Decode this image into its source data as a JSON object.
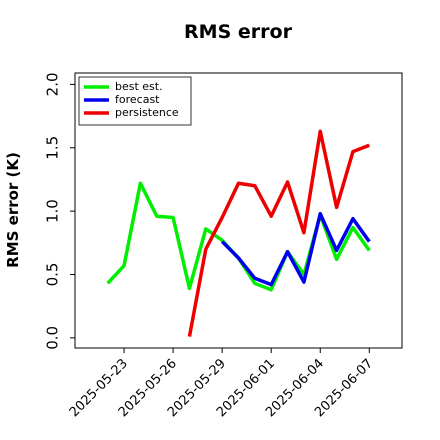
{
  "chart_data": {
    "type": "line",
    "title": "RMS error",
    "ylabel": "RMS error (K)",
    "x": [
      "2025-05-22",
      "2025-05-23",
      "2025-05-24",
      "2025-05-25",
      "2025-05-26",
      "2025-05-27",
      "2025-05-28",
      "2025-05-29",
      "2025-05-30",
      "2025-05-31",
      "2025-06-01",
      "2025-06-02",
      "2025-06-03",
      "2025-06-04",
      "2025-06-05",
      "2025-06-06",
      "2025-06-07"
    ],
    "series": [
      {
        "name": "best est.",
        "color": "#00ee00",
        "values": [
          0.43,
          0.57,
          1.22,
          0.96,
          0.95,
          0.39,
          0.86,
          0.77,
          0.63,
          0.43,
          0.38,
          0.68,
          0.5,
          0.97,
          0.62,
          0.87,
          0.69
        ]
      },
      {
        "name": "forecast",
        "color": "#0000ee",
        "values": [
          null,
          null,
          null,
          null,
          null,
          null,
          null,
          0.76,
          0.63,
          0.47,
          0.42,
          0.68,
          0.44,
          0.98,
          0.69,
          0.94,
          0.76
        ]
      },
      {
        "name": "persistence",
        "color": "#ee0000",
        "values": [
          null,
          null,
          null,
          null,
          null,
          0.01,
          0.7,
          0.95,
          1.22,
          1.2,
          0.96,
          1.23,
          0.83,
          1.63,
          1.03,
          1.47,
          1.52
        ]
      }
    ],
    "xlim": [
      "2025-05-20",
      "2025-06-09"
    ],
    "xticks": [
      "2025-05-23",
      "2025-05-26",
      "2025-05-29",
      "2025-06-01",
      "2025-06-04",
      "2025-06-07"
    ],
    "highlight_xtick": "2025-05-29",
    "highlight_color": "#228b22",
    "ylim": [
      -0.08,
      2.09
    ],
    "yticks": [
      {
        "value": 0,
        "label": "0.0"
      },
      {
        "value": 0.5,
        "label": "0.5"
      },
      {
        "value": 1,
        "label": "1.0"
      },
      {
        "value": 1.5,
        "label": "1.5"
      },
      {
        "value": 2,
        "label": "2.0"
      }
    ],
    "legend": "upper left"
  }
}
